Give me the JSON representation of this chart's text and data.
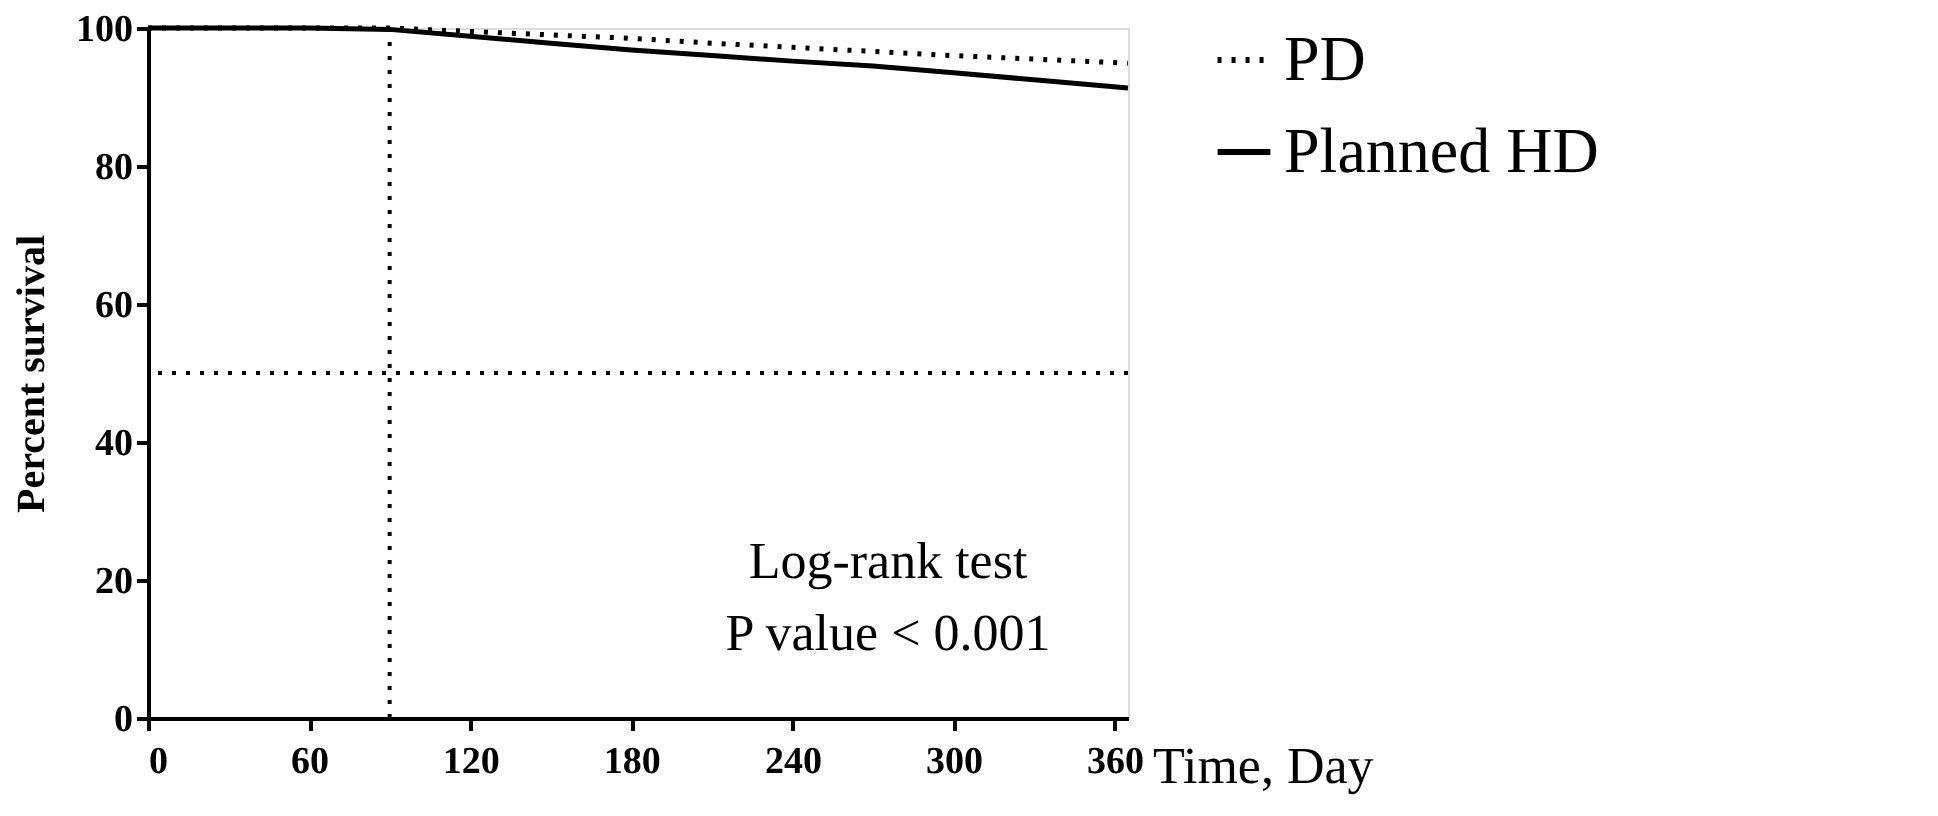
{
  "chart_data": {
    "type": "line",
    "xlabel": "Time, Day",
    "ylabel": "Percent survival",
    "x": [
      0,
      60,
      90,
      120,
      150,
      180,
      210,
      240,
      270,
      300,
      330,
      365
    ],
    "series": [
      {
        "name": "PD",
        "color": "#000000",
        "line_style": "dotted",
        "values": [
          100,
          100,
          100,
          99.5,
          99,
          98.5,
          97.8,
          97.2,
          96.6,
          96,
          95.5,
          94.9
        ]
      },
      {
        "name": "Planned HD",
        "color": "#000000",
        "line_style": "solid",
        "values": [
          100,
          100,
          99.8,
          98.8,
          97.8,
          96.8,
          96,
          95.2,
          94.5,
          93.5,
          92.5,
          91.3
        ]
      }
    ],
    "ref_lines": [
      {
        "axis": "x",
        "value": 90,
        "color": "#000000",
        "line_style": "dotted"
      },
      {
        "axis": "y",
        "value": 50,
        "color": "#000000",
        "line_style": "dotted"
      }
    ],
    "annotations": [
      "Log-rank test",
      "P value < 0.001"
    ],
    "xlim": [
      0,
      365
    ],
    "xticks": [
      0,
      60,
      120,
      180,
      240,
      300,
      360
    ],
    "ylim": [
      0,
      100
    ],
    "yticks": [
      0,
      20,
      40,
      60,
      80,
      100
    ],
    "grid": false,
    "legend": "top right",
    "marker": "none"
  }
}
